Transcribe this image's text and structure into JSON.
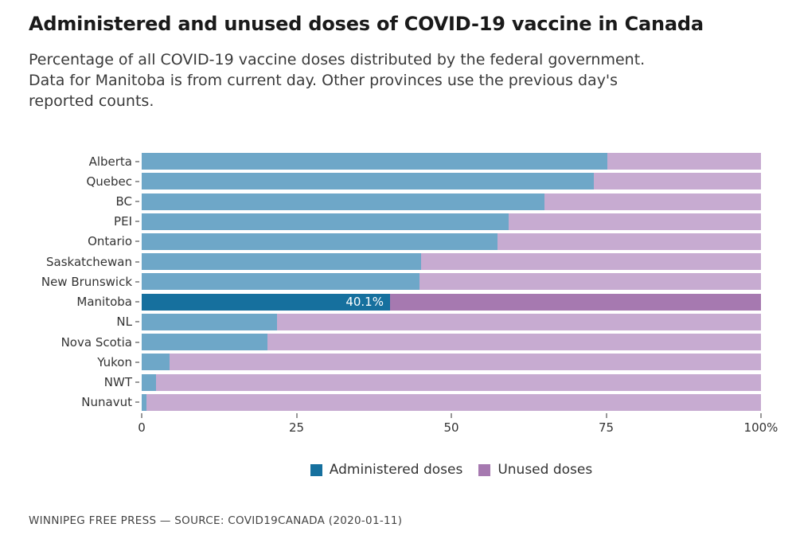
{
  "title": "Administered and unused doses of COVID-19 vaccine in Canada",
  "subtitle_lines": [
    "Percentage of all COVID-19 vaccine doses distributed by the federal government.",
    "Data for Manitoba is from current day. Other provinces use the previous day's",
    "reported counts."
  ],
  "legend": {
    "administered": "Administered doses",
    "unused": "Unused doses"
  },
  "footer": "WINNIPEG FREE PRESS — SOURCE: COVID19CANADA (2020-01-11)",
  "colors": {
    "administered_default": "#6ea7c8",
    "unused_default": "#c7abd1",
    "administered_highlight": "#16709e",
    "unused_highlight": "#a679b0",
    "axis_text": "#333333",
    "tick_mark": "#999999"
  },
  "chart_data": {
    "type": "bar",
    "orientation": "horizontal",
    "stacked": true,
    "categories": [
      "Alberta",
      "Quebec",
      "BC",
      "PEI",
      "Ontario",
      "Saskatchewan",
      "New Brunswick",
      "Manitoba",
      "NL",
      "Nova Scotia",
      "Yukon",
      "NWT",
      "Nunavut"
    ],
    "series": [
      {
        "name": "Administered doses",
        "values": [
          75.2,
          73.0,
          65.0,
          59.3,
          57.5,
          45.1,
          44.9,
          40.1,
          21.9,
          20.3,
          4.5,
          2.3,
          0.8
        ]
      },
      {
        "name": "Unused doses",
        "values": [
          24.8,
          27.0,
          35.0,
          40.7,
          42.5,
          54.9,
          55.1,
          59.9,
          78.1,
          79.7,
          95.5,
          97.7,
          99.2
        ]
      }
    ],
    "highlight_category": "Manitoba",
    "bar_label": {
      "category": "Manitoba",
      "text": "40.1%"
    },
    "xlim": [
      0,
      100
    ],
    "x_ticks": [
      {
        "value": 0,
        "label": "0"
      },
      {
        "value": 25,
        "label": "25"
      },
      {
        "value": 50,
        "label": "50"
      },
      {
        "value": 75,
        "label": "75"
      },
      {
        "value": 100,
        "label": "100%"
      }
    ],
    "grid": false,
    "legend_position": "bottom"
  }
}
